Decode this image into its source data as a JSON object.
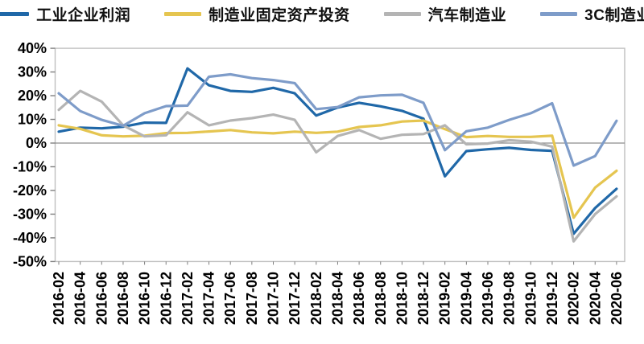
{
  "chart_data": {
    "type": "line",
    "title": "",
    "xlabel": "",
    "ylabel": "",
    "grid": false,
    "legend_position": "top",
    "ylim": [
      -50,
      40
    ],
    "y_ticks": [
      {
        "value": 40,
        "label": "40%"
      },
      {
        "value": 30,
        "label": "30%"
      },
      {
        "value": 20,
        "label": "20%"
      },
      {
        "value": 10,
        "label": "10%"
      },
      {
        "value": 0,
        "label": "0%"
      },
      {
        "value": -10,
        "label": "-10%"
      },
      {
        "value": -20,
        "label": "-20%"
      },
      {
        "value": -30,
        "label": "-30%"
      },
      {
        "value": -40,
        "label": "-40%"
      },
      {
        "value": -50,
        "label": "-50%"
      }
    ],
    "categories": [
      "2016-02",
      "2016-04",
      "2016-06",
      "2016-08",
      "2016-10",
      "2016-12",
      "2017-02",
      "2017-04",
      "2017-06",
      "2017-08",
      "2017-10",
      "2017-12",
      "2018-02",
      "2018-04",
      "2018-06",
      "2018-08",
      "2018-10",
      "2018-12",
      "2019-02",
      "2019-04",
      "2019-06",
      "2019-08",
      "2019-10",
      "2019-12",
      "2020-02",
      "2020-04",
      "2020-06"
    ],
    "series": [
      {
        "id": "industrial-profit",
        "name": "工业企业利润",
        "color": "#2068A8",
        "values": [
          4.8,
          6.5,
          6.2,
          6.9,
          8.6,
          8.5,
          31.5,
          24.4,
          22.0,
          21.6,
          23.3,
          21.0,
          11.6,
          15.0,
          17.0,
          15.5,
          13.6,
          10.3,
          -14.0,
          -3.4,
          -2.6,
          -2.0,
          -2.9,
          -3.3,
          -38.3,
          -27.4,
          -19.3
        ]
      },
      {
        "id": "manufacturing-fai",
        "name": "制造业固定资产投资",
        "color": "#E5C550",
        "values": [
          7.5,
          6.0,
          3.3,
          2.8,
          3.1,
          4.2,
          4.3,
          4.9,
          5.5,
          4.5,
          4.1,
          4.8,
          4.3,
          4.8,
          6.8,
          7.5,
          9.1,
          9.5,
          5.9,
          2.5,
          3.0,
          2.6,
          2.6,
          3.1,
          -31.5,
          -18.8,
          -11.7
        ]
      },
      {
        "id": "auto-manufacturing",
        "name": "汽车制造业",
        "color": "#B4B4B4",
        "values": [
          14.0,
          22.0,
          17.5,
          7.5,
          2.8,
          3.3,
          13.0,
          7.5,
          9.5,
          10.5,
          12.0,
          9.8,
          -3.9,
          3.0,
          5.5,
          1.8,
          3.5,
          3.8,
          7.5,
          -0.5,
          -0.2,
          1.2,
          0.6,
          -1.5,
          -41.5,
          -30.0,
          -22.5
        ]
      },
      {
        "id": "3c-manufacturing",
        "name": "3C制造业",
        "color": "#7E9CC9",
        "values": [
          21.0,
          13.5,
          9.8,
          7.3,
          12.6,
          15.6,
          15.8,
          28.0,
          29.0,
          27.4,
          26.6,
          25.3,
          14.3,
          15.2,
          19.3,
          20.1,
          20.4,
          17.0,
          -3.0,
          5.0,
          6.5,
          9.8,
          12.6,
          16.8,
          -9.5,
          -5.5,
          9.4
        ]
      }
    ],
    "axis_color": "#bfbfbf",
    "zero_line_color": "#8c8c8c",
    "tick_text_color": "#000000"
  }
}
